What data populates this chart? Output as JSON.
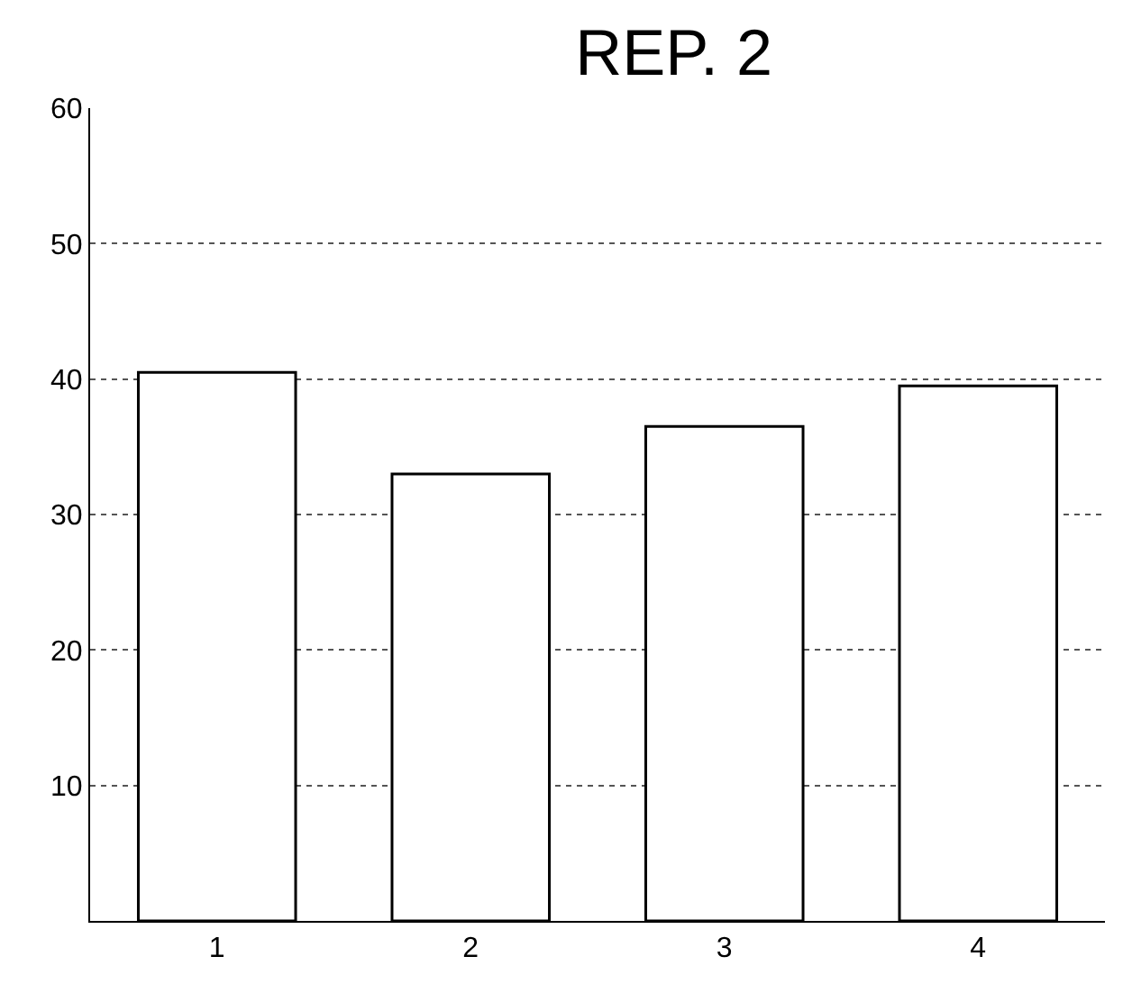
{
  "chart_data": {
    "type": "bar",
    "title": "REP. 2",
    "categories": [
      "1",
      "2",
      "3",
      "4"
    ],
    "values": [
      40.5,
      33,
      36.5,
      39.5
    ],
    "color": "#ffffff",
    "ylim": [
      0,
      60
    ],
    "yticks": [
      10,
      20,
      30,
      40,
      50,
      60
    ],
    "grid": "y"
  }
}
